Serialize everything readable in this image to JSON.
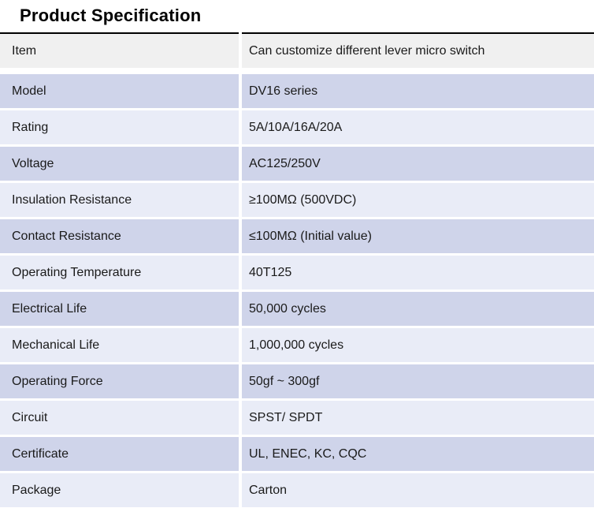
{
  "title": "Product Specification",
  "table": {
    "rows": [
      {
        "label": "Item",
        "value": "Can customize different lever micro switch"
      },
      {
        "label": "Model",
        "value": "DV16 series"
      },
      {
        "label": "Rating",
        "value": "5A/10A/16A/20A"
      },
      {
        "label": "Voltage",
        "value": "AC125/250V"
      },
      {
        "label": "Insulation Resistance",
        "value": "≥100MΩ (500VDC)"
      },
      {
        "label": "Contact Resistance",
        "value": "≤100MΩ (Initial value)"
      },
      {
        "label": "Operating Temperature",
        "value": "40T125"
      },
      {
        "label": "Electrical Life",
        "value": "50,000 cycles"
      },
      {
        "label": "Mechanical Life",
        "value": "1,000,000 cycles"
      },
      {
        "label": "Operating Force",
        "value": "50gf ~  300gf"
      },
      {
        "label": "Circuit",
        "value": "SPST/ SPDT"
      },
      {
        "label": "Certificate",
        "value": "UL, ENEC, KC, CQC"
      },
      {
        "label": "Package",
        "value": "Carton"
      }
    ],
    "colors": {
      "header_row_bg": "#f0f0f0",
      "row_dark_bg": "#cfd4ea",
      "row_light_bg": "#e9ecf7",
      "divider": "#ffffff",
      "top_border": "#000000",
      "text": "#1a1a1a"
    }
  }
}
